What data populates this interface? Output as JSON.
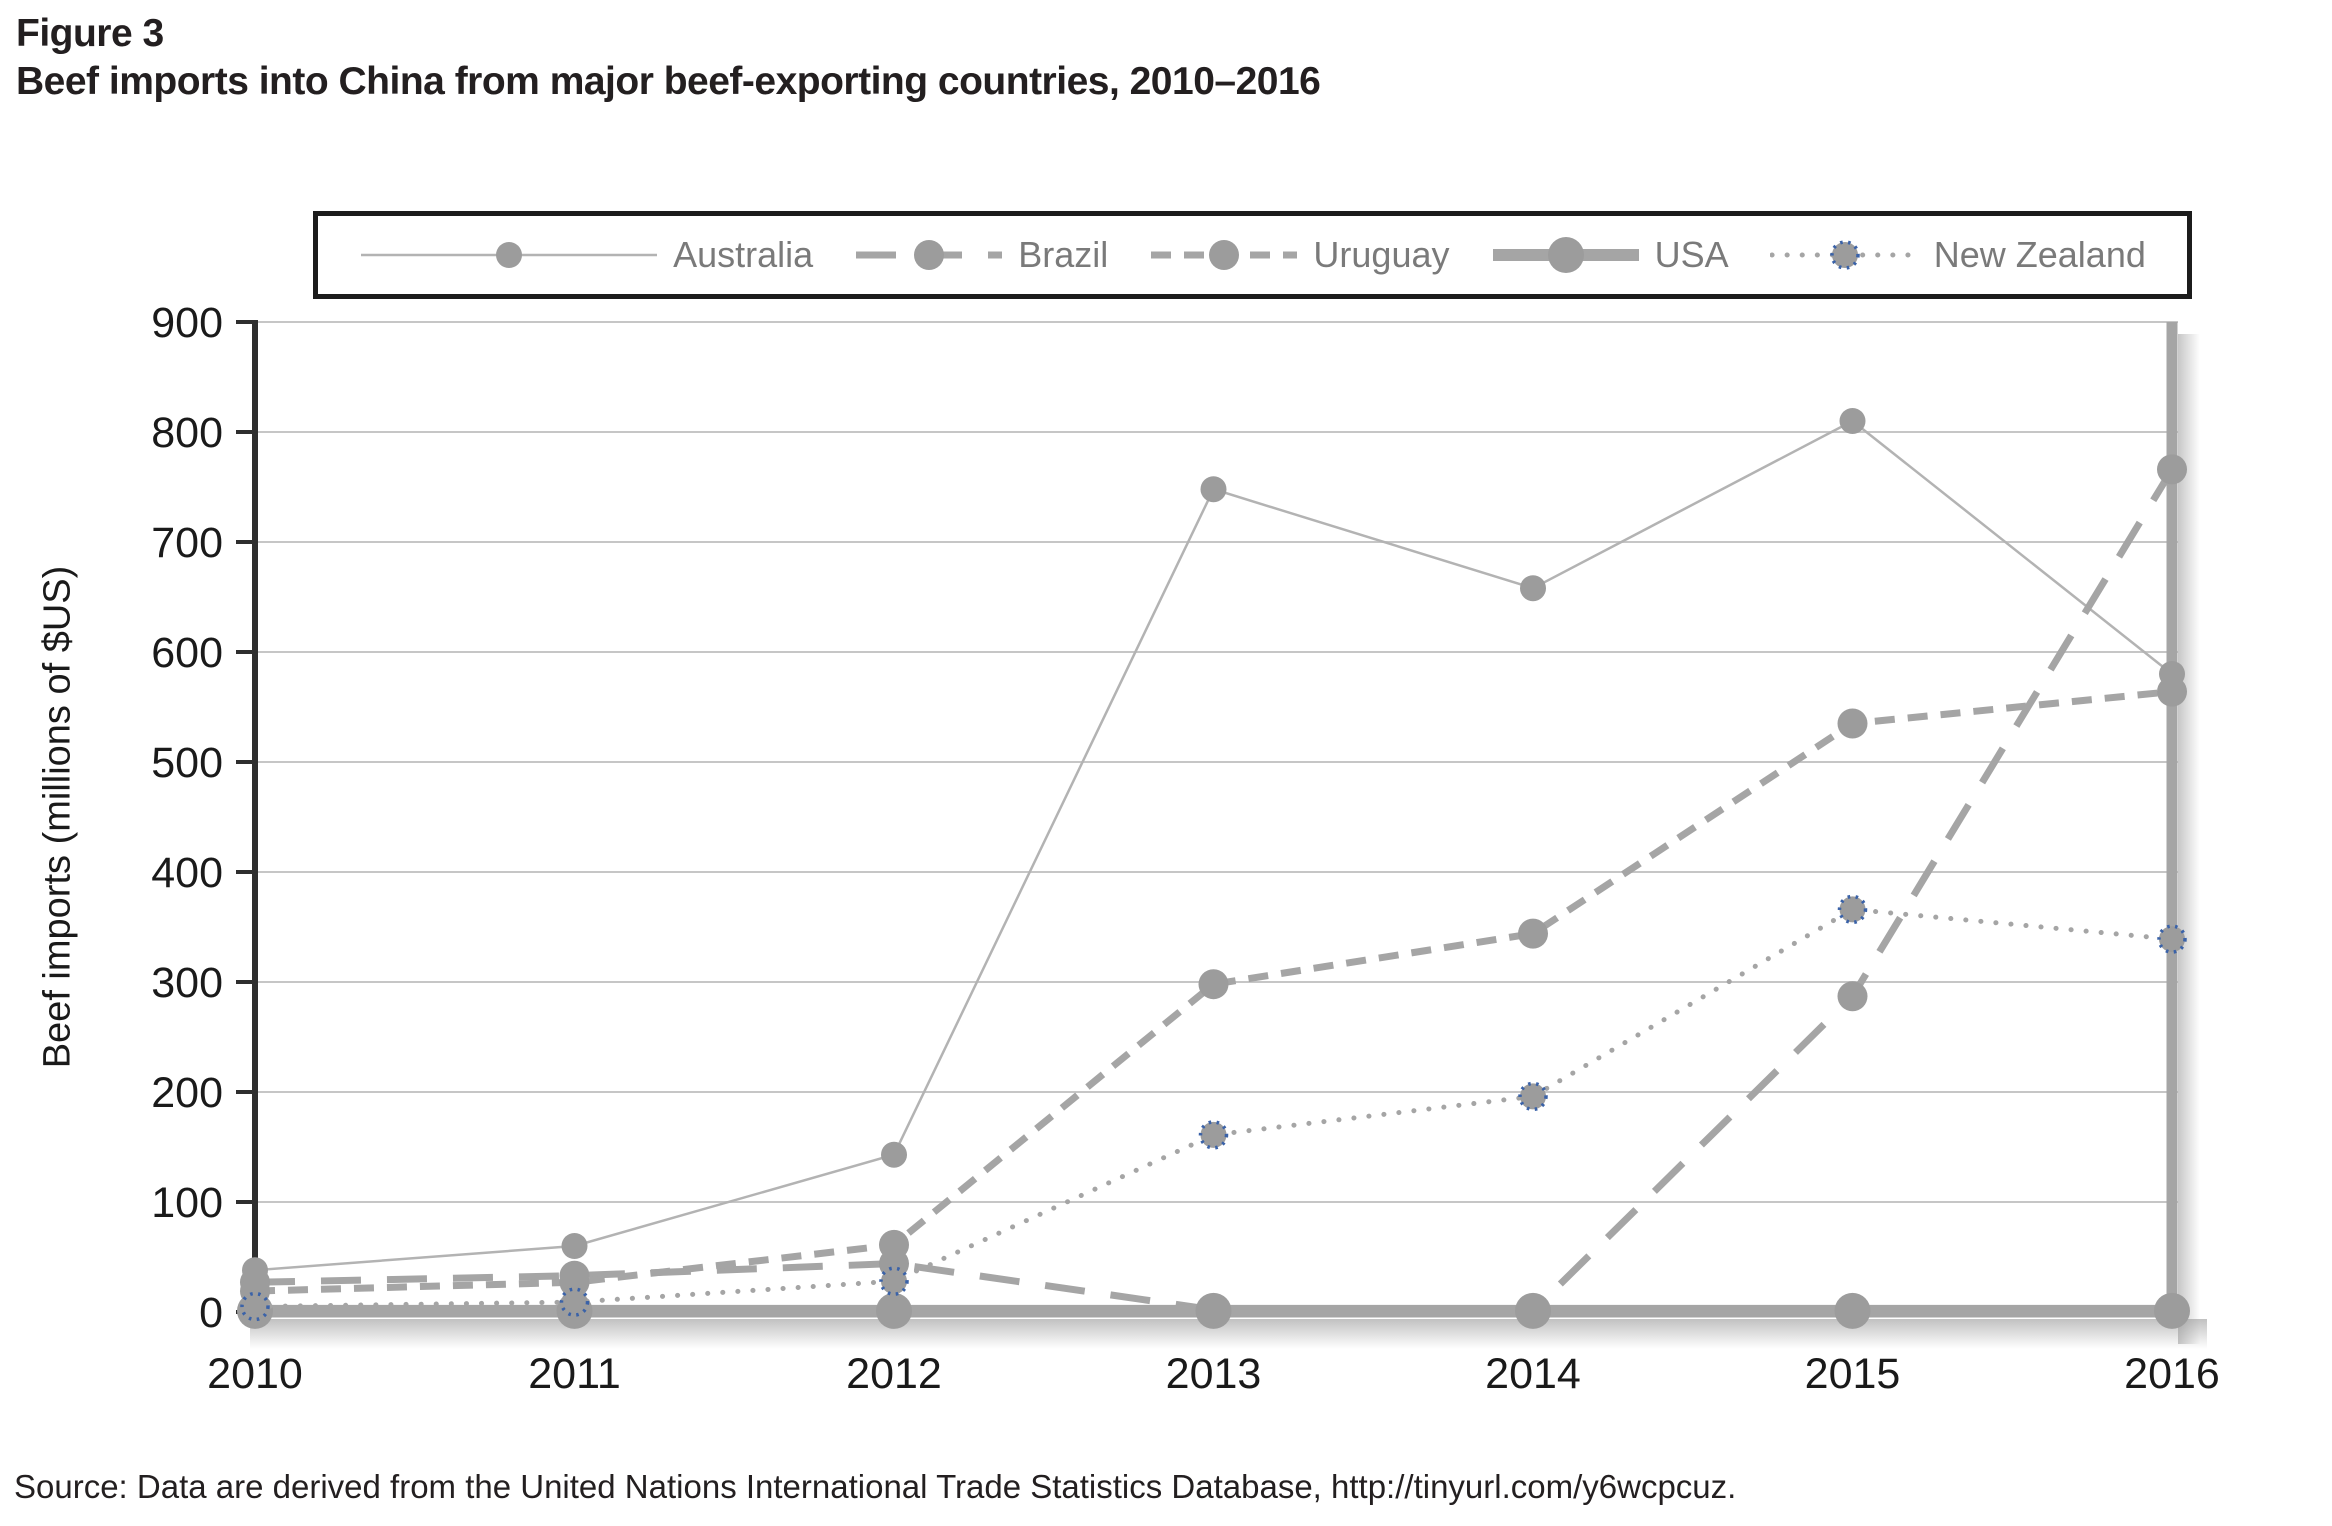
{
  "figure": {
    "label": "Figure 3",
    "title": "Beef imports into China from major beef-exporting countries, 2010–2016"
  },
  "source_note": "Source: Data are derived from the United Nations International Trade Statistics Database, http://tinyurl.com/y6wcpcuz.",
  "colors": {
    "series_gray": "#a5a5a5",
    "thin_line_gray": "#b3b3b3",
    "marker_gray": "#9c9c9c",
    "nz_ring_blue": "#3a62a8",
    "gridline_gray": "#c6c6c6",
    "axis_dark": "#2e2e2e",
    "label_dark": "#1a1a1a",
    "legend_text_gray": "#7a7a7a"
  },
  "chart_data": {
    "type": "line",
    "title": "Figure 3",
    "subtitle": "Beef imports into China from major beef-exporting countries, 2010–2016",
    "x": [
      "2010",
      "2011",
      "2012",
      "2013",
      "2014",
      "2015",
      "2016"
    ],
    "xlabel": "",
    "ylabel": "Beef imports (millions of $US)",
    "ylim": [
      0,
      900
    ],
    "yticks": [
      0,
      100,
      200,
      300,
      400,
      500,
      600,
      700,
      800,
      900
    ],
    "grid": "horizontal",
    "legend_position": "top",
    "series": [
      {
        "name": "Australia",
        "values": [
          38,
          60,
          143,
          748,
          658,
          810,
          580
        ],
        "line": "thin-solid",
        "marker": "circle-small"
      },
      {
        "name": "Brazil",
        "values": [
          27,
          33,
          44,
          2,
          1,
          287,
          766
        ],
        "line": "long-dash",
        "marker": "circle"
      },
      {
        "name": "Uruguay",
        "values": [
          19,
          27,
          61,
          298,
          344,
          535,
          564
        ],
        "line": "medium-dash",
        "marker": "circle"
      },
      {
        "name": "USA",
        "values": [
          1,
          1,
          1,
          1,
          1,
          1,
          1
        ],
        "line": "thick-solid",
        "marker": "circle-large"
      },
      {
        "name": "New Zealand",
        "values": [
          5,
          9,
          28,
          161,
          196,
          366,
          339
        ],
        "line": "dotted",
        "marker": "dotted-ring-circle"
      }
    ],
    "source_note": "Source: Data are derived from the United Nations International Trade Statistics Database, http://tinyurl.com/y6wcpcuz."
  }
}
